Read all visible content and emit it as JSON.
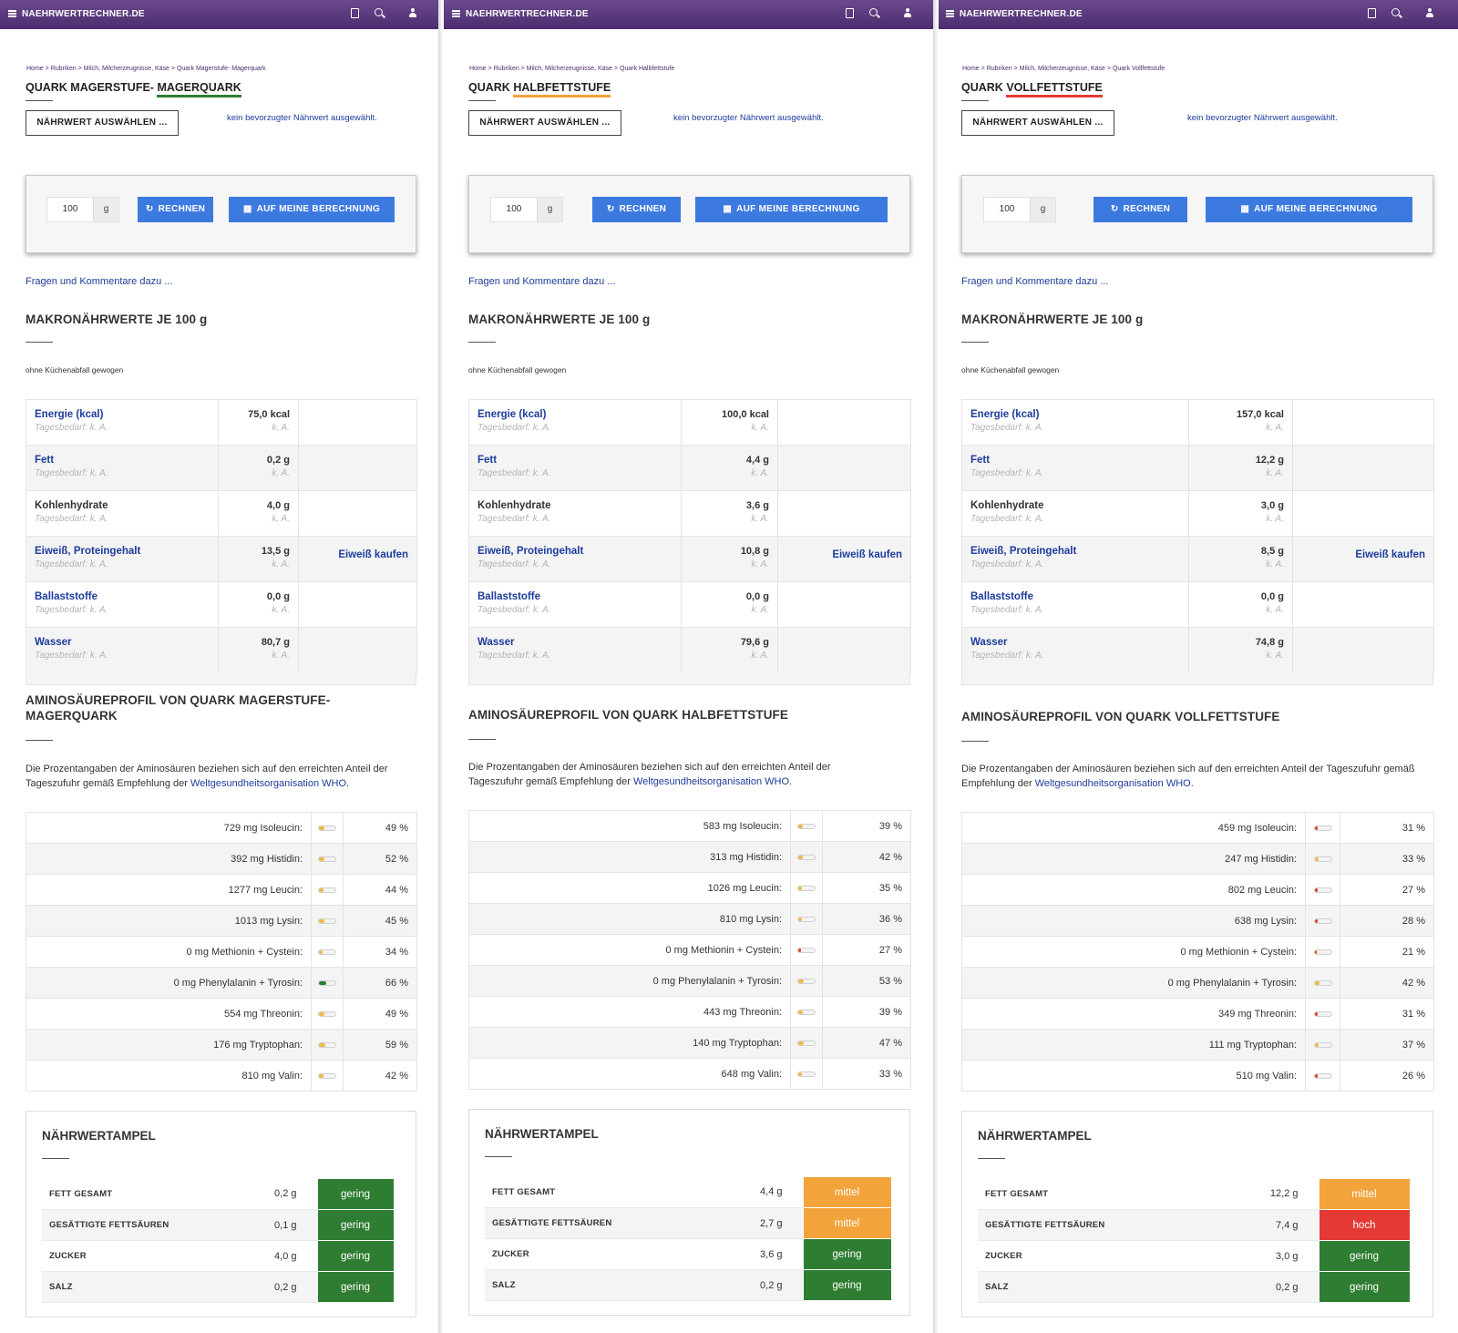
{
  "site": {
    "brand": "NAEHRWERTRECHNER.DE",
    "menu_icon": "hamburger-icon",
    "icons": [
      "calculator-icon",
      "search-icon",
      "user-icon"
    ]
  },
  "common": {
    "crumbs": [
      "Home >",
      "Rubriken >",
      "Milch, Milcherzeugnisse, Käse >"
    ],
    "select_button": "NÄHRWERT AUSWÄHLEN ...",
    "pref_note": "kein bevorzugter Nährwert ausgewählt.",
    "quantity_value": "100",
    "quantity_unit": "g",
    "calc_button": "RECHNEN",
    "mycalc_button": "AUF MEINE BERECHNUNG",
    "questions_link": "Fragen und Kommentare dazu ...",
    "macro_heading": "MAKRONÄHRWERTE JE 100 g",
    "weighed_note": "ohne Küchenabfall gewogen",
    "daily_need": "Tagesbedarf: k. A.",
    "ka": "k. A.",
    "buy_protein": "Eiweiß kaufen",
    "desc_pre": "Die Prozentangaben der Aminosäuren beziehen sich auf den erreichten Anteil der Tageszufuhr gemäß Empfehlung der ",
    "desc_link": "Weltgesundheitsorganisation WHO",
    "desc_post": ".",
    "ampel_heading": "NÄHRWERTAMPEL",
    "macro_labels": [
      "Energie (kcal)",
      "Fett",
      "Kohlenhydrate",
      "Eiweiß, Proteingehalt",
      "Ballaststoffe",
      "Wasser"
    ],
    "amino_labels": [
      "Isoleucin:",
      "Histidin:",
      "Leucin:",
      "Lysin:",
      "Methionin + Cystein:",
      "Phenylalanin + Tyrosin:",
      "Threonin:",
      "Tryptophan:",
      "Valin:"
    ],
    "ampel_labels": [
      "FETT GESAMT",
      "GESÄTTIGTE FETTSÄUREN",
      "ZUCKER",
      "SALZ"
    ]
  },
  "colors": {
    "gering": "#2e7d32",
    "mittel": "#f2a33a",
    "hoch": "#e53935",
    "bar_green": "#2e7d32",
    "bar_yellow": "#efb84a",
    "bar_red": "#d84315",
    "brand_purple": "#4b2c6e",
    "button_blue": "#3d7ae0",
    "link_blue": "#1d3c9b"
  },
  "panels": [
    {
      "crumb_last": "Quark Magerstufe- Magerquark",
      "title_pre": "QUARK MAGERSTUFE- ",
      "title_hl": "MAGERQUARK",
      "title_hl_color": "#2e7d32",
      "macro_values": [
        "75,0 kcal",
        "0,2 g",
        "4,0 g",
        "13,5 g",
        "0,0 g",
        "80,7 g"
      ],
      "amino_heading": "AMINOSÄUREPROFIL VON QUARK MAGERSTUFE- MAGERQUARK",
      "amino_mg": [
        "729 mg",
        "392 mg",
        "1277 mg",
        "1013 mg",
        "0 mg",
        "0 mg",
        "554 mg",
        "176 mg",
        "810 mg"
      ],
      "amino_pct": [
        49,
        52,
        44,
        45,
        34,
        66,
        49,
        59,
        42
      ],
      "amino_pct_text": [
        "49 %",
        "52 %",
        "44 %",
        "45 %",
        "34 %",
        "66 %",
        "49 %",
        "59 %",
        "42 %"
      ],
      "ampel_values": [
        "0,2 g",
        "0,1 g",
        "4,0 g",
        "0,2 g"
      ],
      "ampel_ratings": [
        "gering",
        "gering",
        "gering",
        "gering"
      ]
    },
    {
      "crumb_last": "Quark Halbfettstufe",
      "title_pre": "QUARK ",
      "title_hl": "HALBFETTSTUFE",
      "title_hl_color": "#f2a33a",
      "macro_values": [
        "100,0 kcal",
        "4,4 g",
        "3,6 g",
        "10,8 g",
        "0,0 g",
        "79,6 g"
      ],
      "amino_heading": "AMINOSÄUREPROFIL VON QUARK HALBFETTSTUFE",
      "amino_mg": [
        "583 mg",
        "313 mg",
        "1026 mg",
        "810 mg",
        "0 mg",
        "0 mg",
        "443 mg",
        "140 mg",
        "648 mg"
      ],
      "amino_pct": [
        39,
        42,
        35,
        36,
        27,
        53,
        39,
        47,
        33
      ],
      "amino_pct_text": [
        "39 %",
        "42 %",
        "35 %",
        "36 %",
        "27 %",
        "53 %",
        "39 %",
        "47 %",
        "33 %"
      ],
      "ampel_values": [
        "4,4 g",
        "2,7 g",
        "3,6 g",
        "0,2 g"
      ],
      "ampel_ratings": [
        "mittel",
        "mittel",
        "gering",
        "gering"
      ]
    },
    {
      "crumb_last": "Quark Vollfettstufe",
      "title_pre": "QUARK ",
      "title_hl": "VOLLFETTSTUFE",
      "title_hl_color": "#e53935",
      "macro_values": [
        "157,0 kcal",
        "12,2 g",
        "3,0 g",
        "8,5 g",
        "0,0 g",
        "74,8 g"
      ],
      "amino_heading": "AMINOSÄUREPROFIL VON QUARK VOLLFETTSTUFE",
      "amino_mg": [
        "459 mg",
        "247 mg",
        "802 mg",
        "638 mg",
        "0 mg",
        "0 mg",
        "349 mg",
        "111 mg",
        "510 mg"
      ],
      "amino_pct": [
        31,
        33,
        27,
        28,
        21,
        42,
        31,
        37,
        26
      ],
      "amino_pct_text": [
        "31 %",
        "33 %",
        "27 %",
        "28 %",
        "21 %",
        "42 %",
        "31 %",
        "37 %",
        "26 %"
      ],
      "ampel_values": [
        "12,2 g",
        "7,4 g",
        "3,0 g",
        "0,2 g"
      ],
      "ampel_ratings": [
        "mittel",
        "hoch",
        "gering",
        "gering"
      ]
    }
  ]
}
